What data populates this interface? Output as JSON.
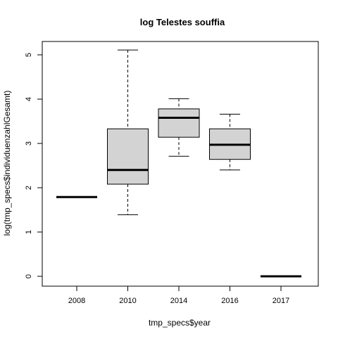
{
  "chart_data": {
    "type": "box",
    "title": "log Telestes souffia",
    "xlabel": "tmp_specs$year",
    "ylabel": "log(tmp_specs$individuenzahlGesamt)",
    "categories": [
      "2008",
      "2010",
      "2014",
      "2016",
      "2017"
    ],
    "boxes": [
      {
        "category": "2008",
        "whisker_low": 1.79,
        "q1": 1.79,
        "median": 1.79,
        "q3": 1.79,
        "whisker_high": 1.79
      },
      {
        "category": "2010",
        "whisker_low": 1.39,
        "q1": 2.08,
        "median": 2.4,
        "q3": 3.33,
        "whisker_high": 5.11
      },
      {
        "category": "2014",
        "whisker_low": 2.71,
        "q1": 3.14,
        "median": 3.58,
        "q3": 3.78,
        "whisker_high": 4.01
      },
      {
        "category": "2016",
        "whisker_low": 2.4,
        "q1": 2.64,
        "median": 2.97,
        "q3": 3.33,
        "whisker_high": 3.66
      },
      {
        "category": "2017",
        "whisker_low": 0.0,
        "q1": 0.0,
        "median": 0.0,
        "q3": 0.0,
        "whisker_high": 0.0
      }
    ],
    "y_ticks": [
      0,
      1,
      2,
      3,
      4,
      5
    ],
    "ylim": [
      -0.2,
      5.3
    ],
    "box_fill": "#d3d3d3",
    "grid": false
  }
}
